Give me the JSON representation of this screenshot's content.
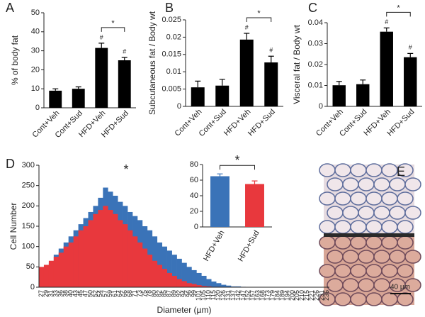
{
  "chart_data": [
    {
      "type": "bar",
      "panel": "A",
      "ylabel": "% of body fat",
      "color": "#000000",
      "categories": [
        "Cont+Veh",
        "Cont+Sud",
        "HFD+Veh",
        "HFD+Sud"
      ],
      "values": [
        9,
        10,
        31.5,
        25
      ],
      "errors": [
        1,
        1,
        2.5,
        1.5
      ],
      "ylim": [
        0,
        50
      ],
      "yticks": [
        0,
        10,
        20,
        30,
        40,
        50
      ],
      "annotations": [
        "#",
        "#",
        "*"
      ]
    },
    {
      "type": "bar",
      "panel": "B",
      "ylabel": "Subcutaneous fat / Body wt",
      "color": "#000000",
      "categories": [
        "Cont+Veh",
        "Cont+Sud",
        "HFD+Veh",
        "HFD+Sud"
      ],
      "values": [
        0.0055,
        0.006,
        0.0193,
        0.0127
      ],
      "errors": [
        0.0018,
        0.0018,
        0.0018,
        0.0018
      ],
      "ylim": [
        0,
        0.025
      ],
      "yticks": [
        0,
        0.005,
        0.01,
        0.015,
        0.02,
        0.025
      ],
      "annotations": [
        "#",
        "#",
        "*"
      ]
    },
    {
      "type": "bar",
      "panel": "C",
      "ylabel": "Visceral fat / Body wt",
      "color": "#000000",
      "categories": [
        "Cont+Veh",
        "Cont+Sud",
        "HFD+Veh",
        "HFD+Sud"
      ],
      "values": [
        0.0101,
        0.0106,
        0.0357,
        0.0235
      ],
      "errors": [
        0.0018,
        0.002,
        0.0018,
        0.0018
      ],
      "ylim": [
        0,
        0.04
      ],
      "yticks": [
        0,
        0.01,
        0.02,
        0.03,
        0.04
      ],
      "annotations": [
        "#",
        "#",
        "*"
      ]
    },
    {
      "type": "histogram",
      "panel": "D",
      "ylabel": "Cell Number",
      "xlabel": "Diameter (µm)",
      "annotation": "*",
      "categories": [
        "27",
        "29",
        "31",
        "33",
        "36",
        "38",
        "40",
        "43",
        "45",
        "47",
        "50",
        "52",
        "54",
        "57",
        "59",
        "61",
        "64",
        "66",
        "68",
        "71",
        "73",
        "75",
        "78",
        "80",
        "82",
        "85",
        "87",
        "89",
        "92",
        "94",
        "96",
        "99",
        "101",
        "105",
        "110",
        "115",
        "120",
        "126",
        "131",
        "137",
        "142",
        "147",
        "152",
        "157",
        "163",
        "168",
        "173",
        "179",
        "184",
        "189",
        "194",
        "200",
        "205",
        "210",
        "215",
        "221",
        "226",
        "231",
        "236"
      ],
      "series": [
        {
          "color": "#3a73b8",
          "values": [
            40,
            45,
            60,
            80,
            95,
            110,
            125,
            140,
            155,
            170,
            185,
            200,
            220,
            245,
            235,
            225,
            210,
            200,
            185,
            175,
            165,
            150,
            140,
            125,
            110,
            100,
            90,
            80,
            70,
            60,
            50,
            42,
            35,
            28,
            20,
            14,
            10,
            6,
            4,
            2,
            2,
            1,
            0,
            0,
            0,
            0,
            0,
            0,
            0,
            0,
            0,
            0,
            0,
            0,
            0,
            0,
            0,
            0,
            0
          ]
        },
        {
          "color": "#e8383d",
          "values": [
            50,
            55,
            65,
            75,
            85,
            100,
            110,
            125,
            140,
            150,
            165,
            180,
            190,
            200,
            190,
            180,
            165,
            155,
            140,
            125,
            110,
            95,
            80,
            65,
            55,
            45,
            35,
            28,
            20,
            15,
            10,
            8,
            5,
            3,
            2,
            1,
            1,
            0,
            0,
            0,
            0,
            0,
            0,
            0,
            0,
            0,
            0,
            0,
            0,
            0,
            0,
            0,
            0,
            0,
            0,
            0,
            0,
            0,
            0
          ]
        }
      ],
      "ylim": [
        0,
        300
      ],
      "yticks": [
        0,
        50,
        100,
        150,
        200,
        250,
        300
      ]
    },
    {
      "type": "bar",
      "categories": [
        "HFD+Veh",
        "HFD+Sud"
      ],
      "values": [
        65,
        55
      ],
      "errors": [
        3,
        4
      ],
      "colors": [
        "#3a73b8",
        "#e8383d"
      ],
      "ylim": [
        0,
        80
      ],
      "yticks": [
        0,
        20,
        40,
        60,
        80
      ],
      "annotations": [
        "*"
      ]
    }
  ],
  "image_panel": {
    "panel": "E",
    "scale_label": "40 µm"
  }
}
